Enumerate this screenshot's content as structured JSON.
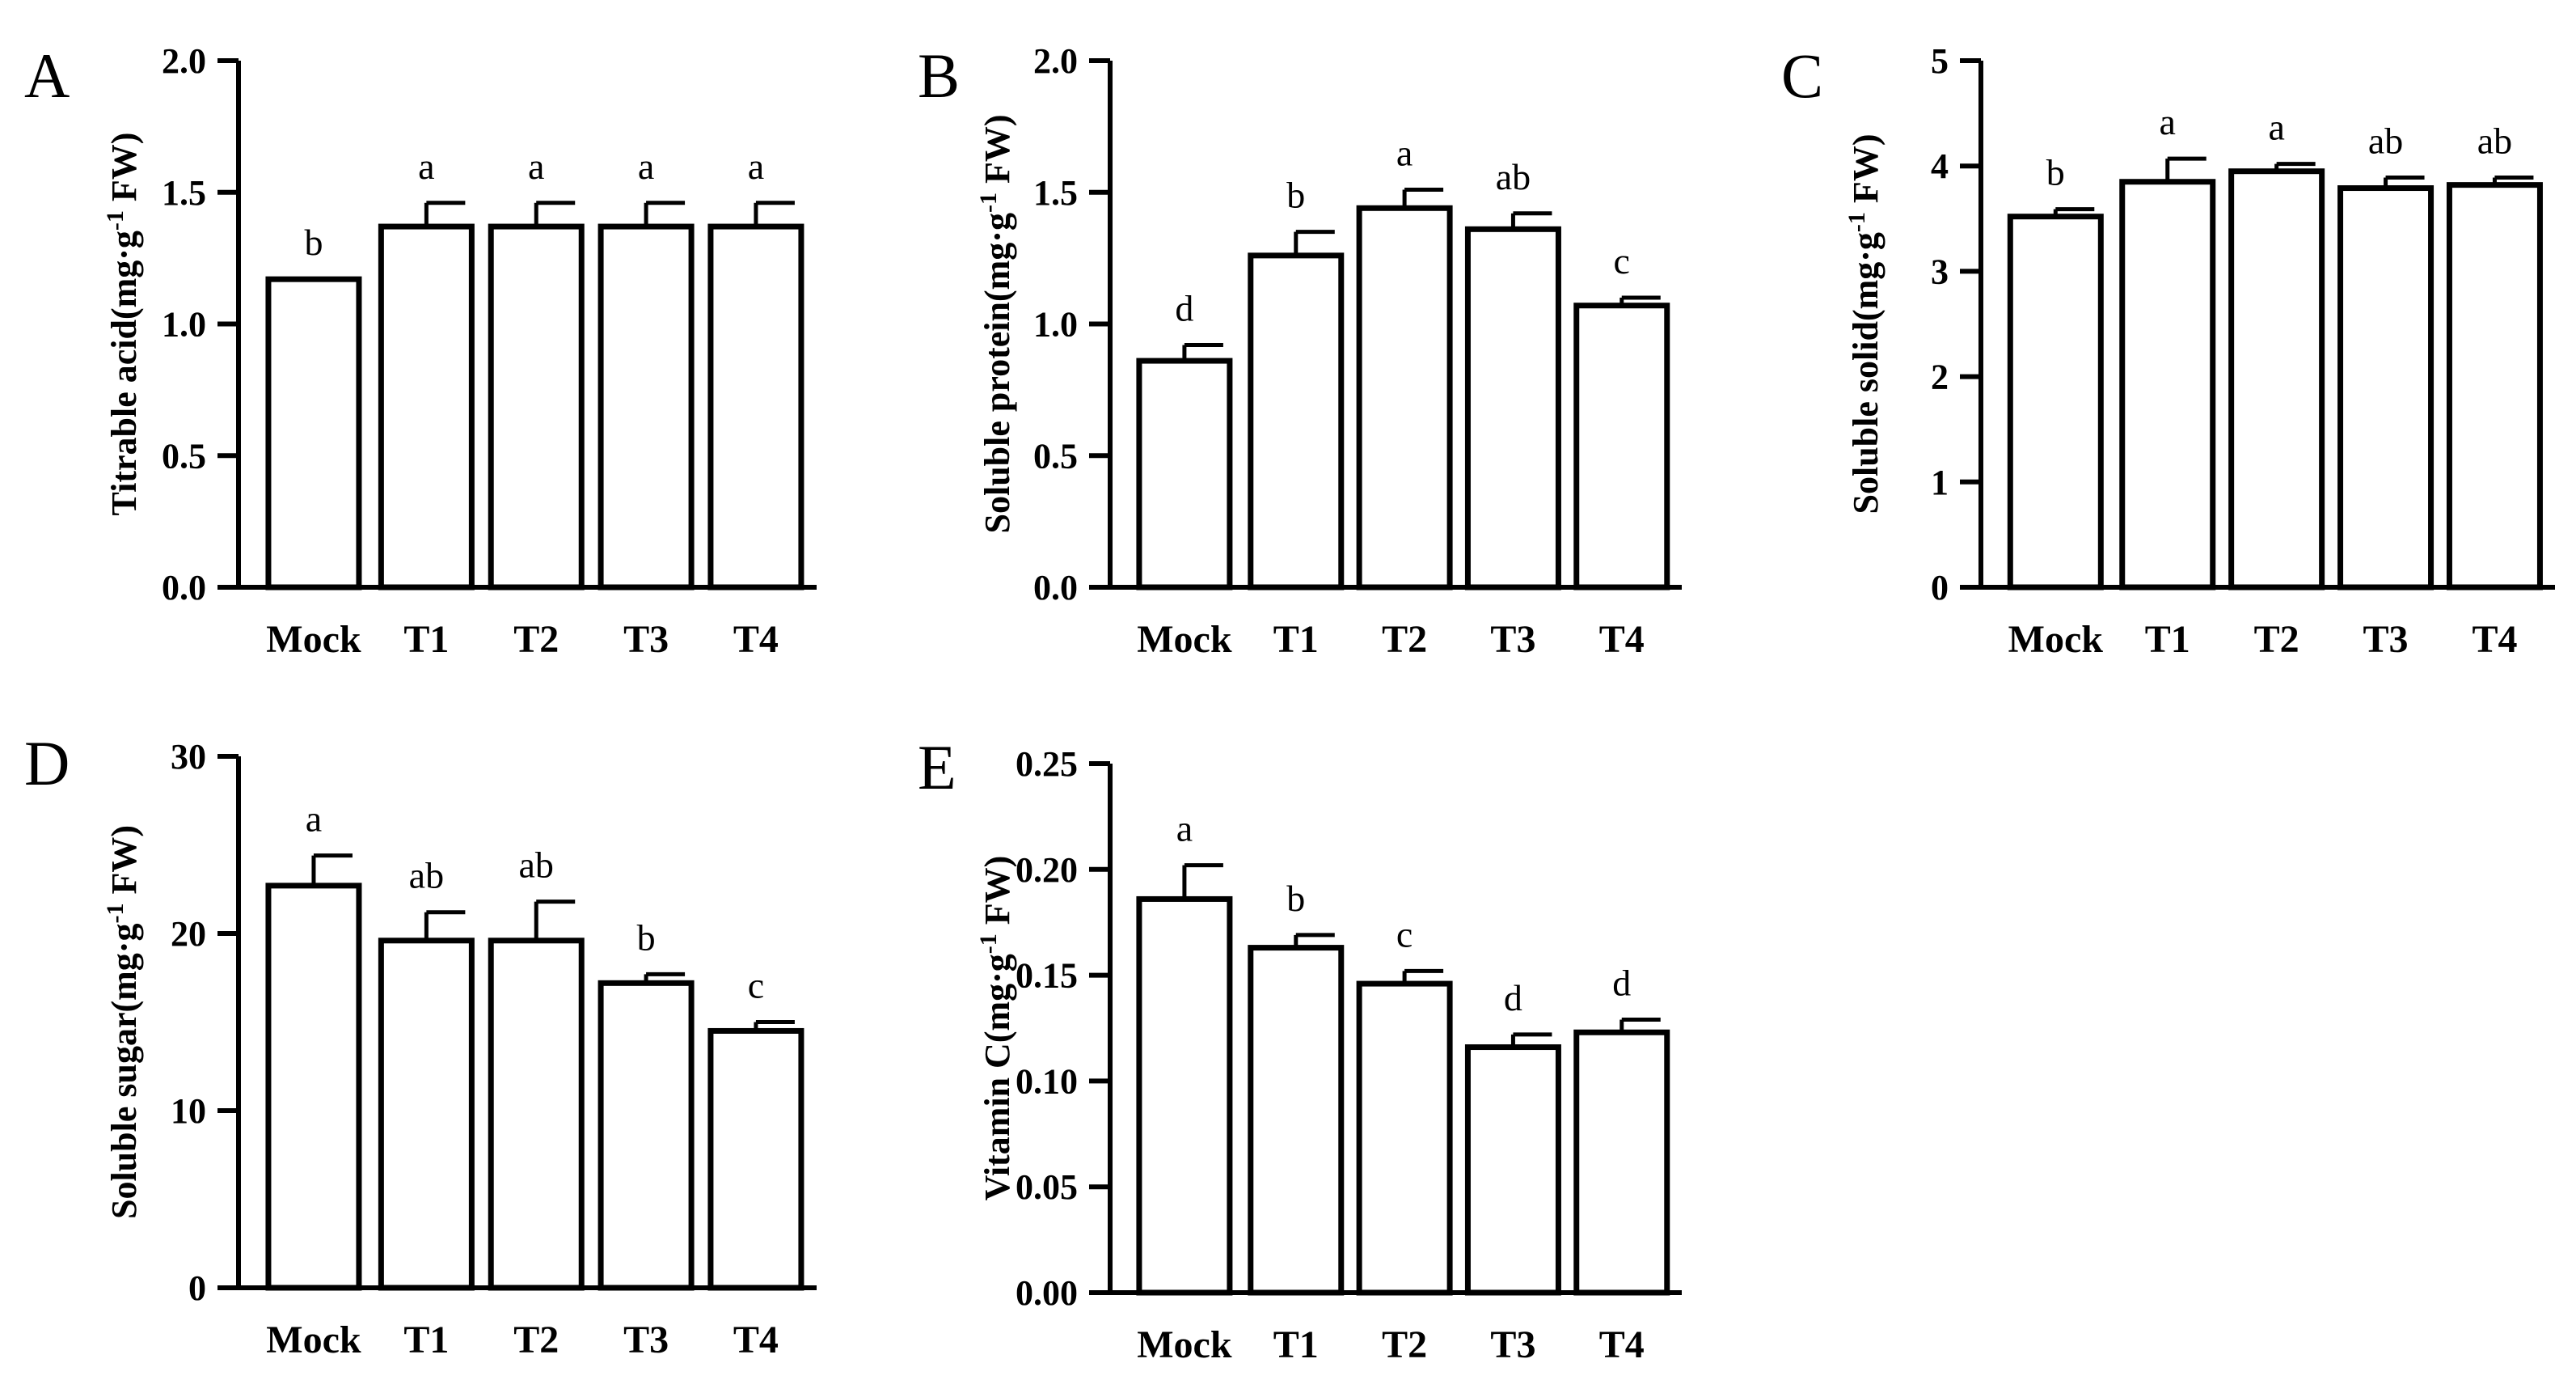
{
  "chart_data": [
    {
      "panel": "A",
      "type": "bar",
      "categories": [
        "Mock",
        "T1",
        "T2",
        "T3",
        "T4"
      ],
      "values": [
        1.17,
        1.37,
        1.37,
        1.37,
        1.37
      ],
      "errors": [
        0.0,
        0.09,
        0.09,
        0.09,
        0.09
      ],
      "significance": [
        "b",
        "a",
        "a",
        "a",
        "a"
      ],
      "ylabel": "Titrable acid(mg·g",
      "ylabel_sup": "-1",
      "ylabel_tail": " FW)",
      "ylim": [
        0,
        2.0
      ],
      "yticks": [
        "0.0",
        "0.5",
        "1.0",
        "1.5",
        "2.0"
      ],
      "ytick_values": [
        0,
        0.5,
        1.0,
        1.5,
        2.0
      ]
    },
    {
      "panel": "B",
      "type": "bar",
      "categories": [
        "Mock",
        "T1",
        "T2",
        "T3",
        "T4"
      ],
      "values": [
        0.86,
        1.26,
        1.44,
        1.36,
        1.07
      ],
      "errors": [
        0.06,
        0.09,
        0.07,
        0.06,
        0.03
      ],
      "significance": [
        "d",
        "b",
        "a",
        "ab",
        "c"
      ],
      "ylabel": "Soluble protein(mg·g",
      "ylabel_sup": "-1",
      "ylabel_tail": " FW)",
      "ylim": [
        0,
        2.0
      ],
      "yticks": [
        "0.0",
        "0.5",
        "1.0",
        "1.5",
        "2.0"
      ],
      "ytick_values": [
        0,
        0.5,
        1.0,
        1.5,
        2.0
      ]
    },
    {
      "panel": "C",
      "type": "bar",
      "categories": [
        "Mock",
        "T1",
        "T2",
        "T3",
        "T4"
      ],
      "values": [
        3.52,
        3.85,
        3.95,
        3.79,
        3.82
      ],
      "errors": [
        0.07,
        0.22,
        0.07,
        0.1,
        0.07
      ],
      "significance": [
        "b",
        "a",
        "a",
        "ab",
        "ab"
      ],
      "ylabel": "Soluble solid(mg·g",
      "ylabel_sup": "-1",
      "ylabel_tail": " FW)",
      "ylim": [
        0,
        5
      ],
      "yticks": [
        "0",
        "1",
        "2",
        "3",
        "4",
        "5"
      ],
      "ytick_values": [
        0,
        1,
        2,
        3,
        4,
        5
      ]
    },
    {
      "panel": "D",
      "type": "bar",
      "categories": [
        "Mock",
        "T1",
        "T2",
        "T3",
        "T4"
      ],
      "values": [
        22.7,
        19.6,
        19.6,
        17.2,
        14.5
      ],
      "errors": [
        1.7,
        1.6,
        2.2,
        0.5,
        0.5
      ],
      "significance": [
        "a",
        "ab",
        "ab",
        "b",
        "c"
      ],
      "ylabel": "Soluble sugar(mg·g",
      "ylabel_sup": "-1",
      "ylabel_tail": " FW)",
      "ylim": [
        0,
        30
      ],
      "yticks": [
        "0",
        "10",
        "20",
        "30"
      ],
      "ytick_values": [
        0,
        10,
        20,
        30
      ]
    },
    {
      "panel": "E",
      "type": "bar",
      "categories": [
        "Mock",
        "T1",
        "T2",
        "T3",
        "T4"
      ],
      "values": [
        0.186,
        0.163,
        0.146,
        0.116,
        0.123
      ],
      "errors": [
        0.016,
        0.006,
        0.006,
        0.006,
        0.006
      ],
      "significance": [
        "a",
        "b",
        "c",
        "d",
        "d"
      ],
      "ylabel": "Vitamin C(mg·g",
      "ylabel_sup": "-1",
      "ylabel_tail": " FW)",
      "ylim": [
        0,
        0.25
      ],
      "yticks": [
        "0.00",
        "0.05",
        "0.10",
        "0.15",
        "0.20",
        "0.25"
      ],
      "ytick_values": [
        0,
        0.05,
        0.1,
        0.15,
        0.2,
        0.25
      ]
    }
  ]
}
